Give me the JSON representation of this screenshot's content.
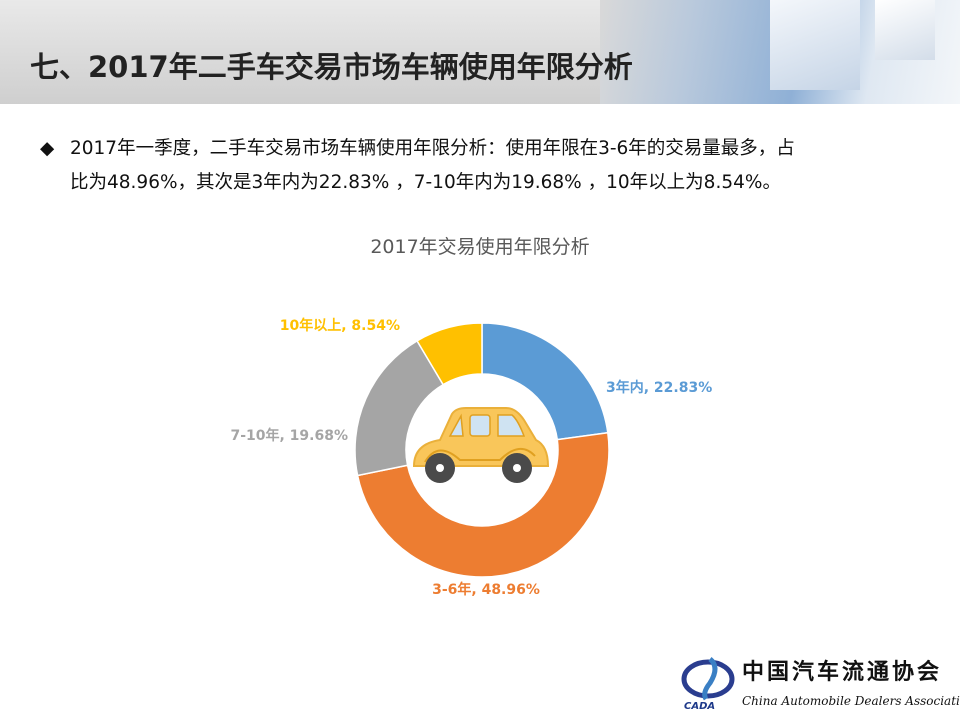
{
  "title": "七、2017年二手车交易市场车辆使用年限分析",
  "paragraph": {
    "bullet": "◆",
    "line1": "2017年一季度，二手车交易市场车辆使用年限分析：使用年限在3-6年的交易量最多，占",
    "line2": "比为48.96%，其次是3年内为22.83% ，7-10年内为19.68% ，10年以上为8.54%。"
  },
  "logo": {
    "cn": "中国汽车流通协会",
    "en": "China Automobile Dealers Association",
    "abbr": "CADA"
  },
  "chart_data": {
    "type": "pie",
    "donut": true,
    "title": "2017年交易使用年限分析",
    "center_icon": "car-icon",
    "categories": [
      "3年内",
      "3-6年",
      "7-10年",
      "10年以上"
    ],
    "values": [
      22.83,
      48.96,
      19.68,
      8.54
    ],
    "labels": [
      "3年内, 22.83%",
      "3-6年, 48.96%",
      "7-10年, 19.68%",
      "10年以上, 8.54%"
    ],
    "colors": [
      "#5b9bd5",
      "#ed7d31",
      "#a5a5a5",
      "#ffc000"
    ]
  }
}
